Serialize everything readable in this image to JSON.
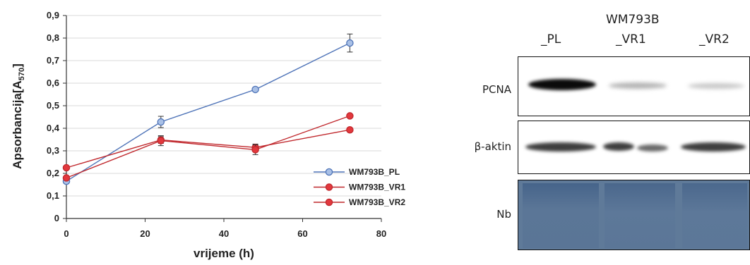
{
  "chart_data": {
    "type": "line",
    "xlabel": "vrijeme (h)",
    "ylabel_main": "Apsorbancija[A",
    "ylabel_sub": "570",
    "ylabel_end": "]",
    "xlim": [
      0,
      80
    ],
    "ylim": [
      0,
      0.9
    ],
    "xticks": [
      "0",
      "20",
      "40",
      "60",
      "80"
    ],
    "yticks": [
      "0",
      "0,1",
      "0,2",
      "0,3",
      "0,4",
      "0,5",
      "0,6",
      "0,7",
      "0,8",
      "0,9"
    ],
    "grid": true,
    "legend_position": "bottom-right",
    "series": [
      {
        "name": "WM793B_PL",
        "color": "#4f74b8",
        "fill": "#a9c0e6",
        "x": [
          0,
          24,
          48,
          72
        ],
        "y": [
          0.165,
          0.428,
          0.572,
          0.778
        ],
        "err": [
          0.01,
          0.025,
          0.008,
          0.04
        ]
      },
      {
        "name": "WM793B_VR1",
        "color": "#c0282d",
        "fill": "#e2383d",
        "x": [
          0,
          24,
          48,
          72
        ],
        "y": [
          0.225,
          0.348,
          0.315,
          0.393
        ],
        "err": [
          0.008,
          0.015,
          0.015,
          0.008
        ]
      },
      {
        "name": "WM793B_VR2",
        "color": "#c0282d",
        "fill": "#e2383d",
        "x": [
          0,
          24,
          48,
          72
        ],
        "y": [
          0.18,
          0.345,
          0.305,
          0.455
        ],
        "err": [
          0.008,
          0.022,
          0.022,
          0.008
        ]
      }
    ]
  },
  "blot": {
    "title": "WM793B",
    "lanes": [
      "_PL",
      "_VR1",
      "_VR2"
    ],
    "rows": [
      {
        "label": "PCNA",
        "intensity": [
          0.95,
          0.25,
          0.2
        ]
      },
      {
        "label": "β-aktin",
        "intensity": [
          0.85,
          0.8,
          0.85
        ]
      },
      {
        "label": "Nb",
        "intensity": [
          1,
          1,
          1
        ]
      }
    ]
  }
}
